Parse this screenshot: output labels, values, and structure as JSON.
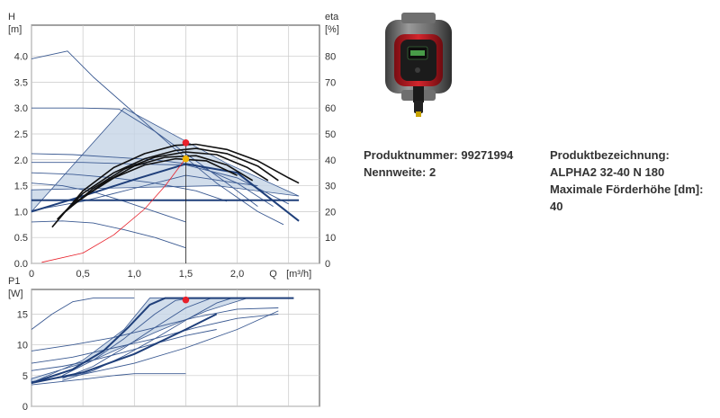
{
  "product": {
    "number_label": "Produktnummer:",
    "number": "99271994",
    "nominal_label": "Nennweite:",
    "nominal": "2",
    "designation_label": "Produktbezeichnung:",
    "designation": "ALPHA2 32-40 N 180",
    "maxhead_label": "Maximale Förderhöhe [dm]:",
    "maxhead": "40"
  },
  "colors": {
    "curve_navy": "#1f3f7a",
    "curve_light": "#3b5a92",
    "area_fill": "#c6d4e6",
    "operating_point": "#e8202a",
    "efficiency_point": "#f0b400",
    "system_curve": "#e8202a",
    "efficiency_curve": "#111111"
  },
  "chart_data": [
    {
      "type": "line",
      "title": "",
      "ylabel": "H",
      "yunit": "[m]",
      "y2label": "eta",
      "y2unit": "[%]",
      "xlabel": "Q",
      "xunit": "[m³/h]",
      "xlim": [
        0,
        2.8
      ],
      "ylim": [
        0,
        4.6
      ],
      "y2lim": [
        0,
        92
      ],
      "xticks": [
        "0",
        "0,5",
        "1,0",
        "1,5",
        "2,0"
      ],
      "yticks": [
        "0.0",
        "0.5",
        "1.0",
        "1.5",
        "2.0",
        "2.5",
        "3.0",
        "3.5",
        "4.0"
      ],
      "y2ticks": [
        "0",
        "10",
        "20",
        "30",
        "40",
        "50",
        "60",
        "70",
        "80"
      ],
      "grid": true,
      "shaded_area": [
        [
          0,
          1.0
        ],
        [
          0.9,
          3.0
        ],
        [
          1.9,
          1.93
        ],
        [
          2.6,
          1.3
        ],
        [
          1.8,
          1.5
        ],
        [
          0,
          1.42
        ]
      ],
      "series": [
        {
          "style": "thin",
          "x": [
            0,
            0.35,
            0.6,
            1.0,
            1.4,
            1.8,
            2.2,
            2.45
          ],
          "y": [
            3.95,
            4.1,
            3.6,
            2.9,
            2.2,
            1.55,
            1.0,
            0.75
          ]
        },
        {
          "style": "thin",
          "x": [
            0,
            0.5,
            0.85,
            1.2,
            1.55,
            1.9,
            2.2
          ],
          "y": [
            3.0,
            3.0,
            2.98,
            2.55,
            2.05,
            1.55,
            1.1
          ]
        },
        {
          "style": "thin",
          "x": [
            0,
            0.4,
            0.8,
            1.2,
            1.6,
            2.0,
            2.35
          ],
          "y": [
            2.12,
            2.1,
            2.05,
            2.0,
            1.9,
            1.55,
            1.1
          ]
        },
        {
          "style": "thin",
          "x": [
            0,
            0.5,
            1.0,
            1.5,
            2.0,
            2.5
          ],
          "y": [
            1.95,
            1.95,
            1.92,
            1.9,
            1.65,
            1.15
          ]
        },
        {
          "style": "thin",
          "x": [
            0,
            0.4,
            0.8,
            1.2,
            1.6,
            1.9
          ],
          "y": [
            1.75,
            1.72,
            1.65,
            1.55,
            1.4,
            1.2
          ]
        },
        {
          "style": "thin",
          "x": [
            0,
            0.3,
            0.6,
            0.9,
            1.2,
            1.5
          ],
          "y": [
            1.55,
            1.5,
            1.38,
            1.2,
            1.0,
            0.8
          ]
        },
        {
          "style": "thin",
          "x": [
            0,
            0.3,
            0.6,
            0.9,
            1.2,
            1.5
          ],
          "y": [
            0.8,
            0.82,
            0.78,
            0.65,
            0.5,
            0.3
          ]
        },
        {
          "style": "thin",
          "x": [
            0,
            0.5,
            1.0,
            1.5,
            2.0,
            2.2
          ],
          "y": [
            1.02,
            1.2,
            1.45,
            1.7,
            1.55,
            1.5
          ]
        },
        {
          "style": "thin",
          "x": [
            0,
            0.5,
            1.0,
            1.5,
            1.8,
            2.0
          ],
          "y": [
            1.22,
            1.22,
            1.22,
            1.22,
            1.22,
            1.22
          ]
        },
        {
          "style": "bold",
          "x": [
            0,
            0.5,
            1.0,
            1.5,
            2.0,
            2.6
          ],
          "y": [
            1.0,
            1.3,
            1.62,
            1.92,
            1.75,
            0.82
          ]
        },
        {
          "style": "bold",
          "x": [
            0,
            1.0,
            1.6,
            2.0,
            2.6
          ],
          "y": [
            1.22,
            1.22,
            1.22,
            1.22,
            1.22
          ]
        },
        {
          "style": "system",
          "x": [
            0.1,
            0.5,
            0.8,
            1.1,
            1.3,
            1.5
          ],
          "y": [
            0.02,
            0.2,
            0.55,
            1.05,
            1.5,
            2.03
          ]
        },
        {
          "style": "eta",
          "x": [
            0.2,
            0.5,
            0.8,
            1.1,
            1.4,
            1.6,
            1.9,
            2.2,
            2.5,
            2.6
          ],
          "y": [
            0.7,
            1.4,
            1.85,
            2.12,
            2.28,
            2.3,
            2.2,
            1.98,
            1.65,
            1.55
          ]
        },
        {
          "style": "eta",
          "x": [
            0.25,
            0.5,
            0.8,
            1.1,
            1.4,
            1.6,
            1.9,
            2.2,
            2.4
          ],
          "y": [
            0.85,
            1.35,
            1.75,
            2.02,
            2.18,
            2.22,
            2.12,
            1.88,
            1.6
          ]
        },
        {
          "style": "eta",
          "x": [
            0.3,
            0.6,
            0.9,
            1.2,
            1.5,
            1.8,
            2.1,
            2.3
          ],
          "y": [
            0.95,
            1.45,
            1.82,
            2.05,
            2.15,
            2.1,
            1.85,
            1.6
          ]
        },
        {
          "style": "eta",
          "x": [
            0.35,
            0.7,
            1.0,
            1.3,
            1.6,
            1.9,
            2.15
          ],
          "y": [
            1.05,
            1.55,
            1.88,
            2.05,
            2.08,
            1.9,
            1.6
          ]
        },
        {
          "style": "eta",
          "x": [
            0.4,
            0.8,
            1.1,
            1.4,
            1.7,
            2.0
          ],
          "y": [
            1.15,
            1.65,
            1.9,
            2.02,
            1.98,
            1.7
          ]
        }
      ],
      "operating_point": {
        "x": 1.5,
        "y": 2.33
      },
      "efficiency_point": {
        "x": 1.5,
        "y": 2.02
      }
    },
    {
      "type": "line",
      "title": "",
      "ylabel": "P1",
      "yunit": "[W]",
      "xlim": [
        0,
        2.8
      ],
      "ylim": [
        0,
        19
      ],
      "yticks": [
        "0",
        "5",
        "10",
        "15"
      ],
      "grid": true,
      "shaded_area": [
        [
          0,
          3.8
        ],
        [
          0.5,
          7.5
        ],
        [
          0.9,
          12.5
        ],
        [
          1.15,
          17.6
        ],
        [
          2.1,
          17.6
        ],
        [
          1.7,
          15.5
        ],
        [
          1.2,
          12.0
        ],
        [
          0.6,
          7.5
        ],
        [
          0,
          4.5
        ]
      ],
      "series": [
        {
          "style": "thin",
          "x": [
            0,
            0.2,
            0.4,
            0.6,
            0.8,
            1.0
          ],
          "y": [
            12.5,
            15.0,
            17.0,
            17.6,
            17.6,
            17.6
          ]
        },
        {
          "style": "thin",
          "x": [
            0,
            0.4,
            0.8,
            1.2,
            1.6,
            2.0,
            2.4
          ],
          "y": [
            9.0,
            10.0,
            11.2,
            12.8,
            14.5,
            15.8,
            16.0
          ]
        },
        {
          "style": "thin",
          "x": [
            0,
            0.4,
            0.8,
            1.2,
            1.6,
            2.0,
            2.4
          ],
          "y": [
            7.0,
            8.0,
            9.5,
            11.0,
            12.8,
            14.3,
            15.0
          ]
        },
        {
          "style": "thin",
          "x": [
            0,
            0.3,
            0.6,
            0.9,
            1.2,
            1.5,
            1.8
          ],
          "y": [
            5.8,
            6.5,
            7.5,
            8.8,
            10.2,
            11.5,
            12.5
          ]
        },
        {
          "style": "thin",
          "x": [
            0,
            0.5,
            1.0,
            1.5,
            2.0,
            2.4
          ],
          "y": [
            4.0,
            5.2,
            7.0,
            9.5,
            12.5,
            15.5
          ]
        },
        {
          "style": "thin",
          "x": [
            0,
            0.5,
            0.8,
            1.0,
            1.5
          ],
          "y": [
            3.5,
            4.4,
            5.0,
            5.3,
            5.3
          ]
        },
        {
          "style": "thin",
          "x": [
            0.3,
            0.6,
            0.9,
            1.2,
            1.4,
            1.55
          ],
          "y": [
            5.0,
            7.5,
            11.0,
            15.0,
            17.2,
            17.6
          ]
        },
        {
          "style": "thin",
          "x": [
            0.3,
            0.6,
            0.9,
            1.2,
            1.5,
            1.75
          ],
          "y": [
            4.5,
            6.5,
            9.5,
            12.8,
            16.0,
            17.6
          ]
        },
        {
          "style": "thin",
          "x": [
            0.3,
            0.6,
            0.9,
            1.2,
            1.5,
            1.8,
            1.95
          ],
          "y": [
            4.2,
            5.8,
            8.2,
            11.0,
            14.0,
            16.8,
            17.6
          ]
        },
        {
          "style": "bold",
          "x": [
            0,
            0.4,
            0.7,
            0.95,
            1.15,
            1.3,
            1.6,
            2.0,
            2.55
          ],
          "y": [
            3.8,
            6.0,
            9.0,
            13.0,
            16.5,
            17.6,
            17.6,
            17.6,
            17.6
          ]
        },
        {
          "style": "bold",
          "x": [
            0,
            0.5,
            1.0,
            1.5,
            1.8
          ],
          "y": [
            3.8,
            5.5,
            8.5,
            12.5,
            15.0
          ]
        }
      ],
      "operating_point": {
        "x": 1.5,
        "y": 17.3
      }
    }
  ]
}
